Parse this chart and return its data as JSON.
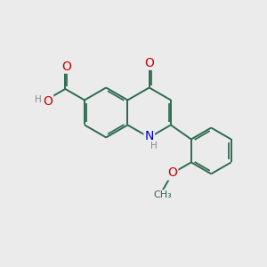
{
  "bg_color": "#ebebeb",
  "bond_color": "#2d6b50",
  "bond_width": 1.4,
  "dbo": 0.08,
  "atom_colors": {
    "O": "#cc0000",
    "N": "#0000cc",
    "C": "#2d6b50",
    "H": "#888888"
  },
  "font_size": 9.5,
  "fig_size": [
    3.0,
    3.0
  ],
  "dpi": 100
}
